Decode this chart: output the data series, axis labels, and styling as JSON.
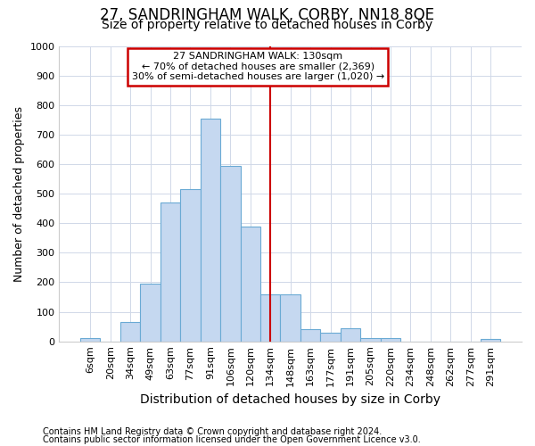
{
  "title": "27, SANDRINGHAM WALK, CORBY, NN18 8QE",
  "subtitle": "Size of property relative to detached houses in Corby",
  "xlabel": "Distribution of detached houses by size in Corby",
  "ylabel": "Number of detached properties",
  "footnote1": "Contains HM Land Registry data © Crown copyright and database right 2024.",
  "footnote2": "Contains public sector information licensed under the Open Government Licence v3.0.",
  "annotation_line1": "27 SANDRINGHAM WALK: 130sqm",
  "annotation_line2": "← 70% of detached houses are smaller (2,369)",
  "annotation_line3": "30% of semi-detached houses are larger (1,020) →",
  "bar_labels": [
    "6sqm",
    "20sqm",
    "34sqm",
    "49sqm",
    "63sqm",
    "77sqm",
    "91sqm",
    "106sqm",
    "120sqm",
    "134sqm",
    "148sqm",
    "163sqm",
    "177sqm",
    "191sqm",
    "205sqm",
    "220sqm",
    "234sqm",
    "248sqm",
    "262sqm",
    "277sqm",
    "291sqm"
  ],
  "bar_values": [
    10,
    0,
    65,
    195,
    470,
    515,
    755,
    595,
    390,
    160,
    160,
    40,
    30,
    45,
    10,
    10,
    0,
    0,
    0,
    0,
    8
  ],
  "bar_color": "#c5d8f0",
  "bar_edge_color": "#6aaad4",
  "property_line_x_label": "134sqm",
  "ylim": [
    0,
    1000
  ],
  "yticks": [
    0,
    100,
    200,
    300,
    400,
    500,
    600,
    700,
    800,
    900,
    1000
  ],
  "bg_color": "#ffffff",
  "grid_color": "#d0d8e8",
  "annotation_box_color": "#cc0000",
  "vline_color": "#cc0000",
  "title_fontsize": 12,
  "subtitle_fontsize": 10,
  "xlabel_fontsize": 10,
  "ylabel_fontsize": 9,
  "tick_fontsize": 8,
  "footnote_fontsize": 7
}
